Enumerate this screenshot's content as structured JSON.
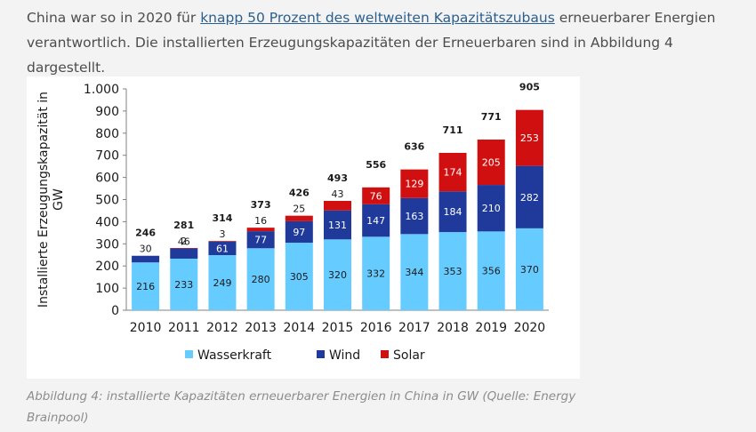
{
  "paragraph": {
    "before": "China war so in 2020 für ",
    "link": "knapp 50 Prozent des weltweiten Kapazitätszubaus",
    "after": " erneuerbarer Energien verantwortlich. Die installierten Erzeugungskapazitäten der Erneuerbaren sind in Abbildung 4 dargestellt."
  },
  "caption": "Abbildung 4: installierte Kapazitäten erneuerbarer Energien in China in GW (Quelle: Energy Brainpool)",
  "chart_data": {
    "type": "bar",
    "stacked": true,
    "categories": [
      "2010",
      "2011",
      "2012",
      "2013",
      "2014",
      "2015",
      "2016",
      "2017",
      "2018",
      "2019",
      "2020"
    ],
    "series": [
      {
        "name": "Wasserkraft",
        "color": "#66ccff",
        "values": [
          216,
          233,
          249,
          280,
          305,
          320,
          332,
          344,
          353,
          356,
          370
        ]
      },
      {
        "name": "Wind",
        "color": "#1f3a9a",
        "values": [
          30,
          46,
          61,
          77,
          97,
          131,
          147,
          163,
          184,
          210,
          282
        ]
      },
      {
        "name": "Solar",
        "color": "#d01010",
        "values": [
          null,
          2,
          3,
          16,
          25,
          43,
          76,
          129,
          174,
          205,
          253
        ]
      }
    ],
    "totals": [
      246,
      281,
      314,
      373,
      426,
      493,
      556,
      636,
      711,
      771,
      905
    ],
    "ylabel": "Installierte Erzeugungskapazität in GW",
    "ylim": [
      0,
      1000
    ],
    "yticks": [
      0,
      100,
      200,
      300,
      400,
      500,
      600,
      700,
      800,
      900,
      1000
    ],
    "ytick_labels": [
      "0",
      "100",
      "200",
      "300",
      "400",
      "500",
      "600",
      "700",
      "800",
      "900",
      "1.000"
    ],
    "grid": false,
    "legend_position": "bottom"
  }
}
